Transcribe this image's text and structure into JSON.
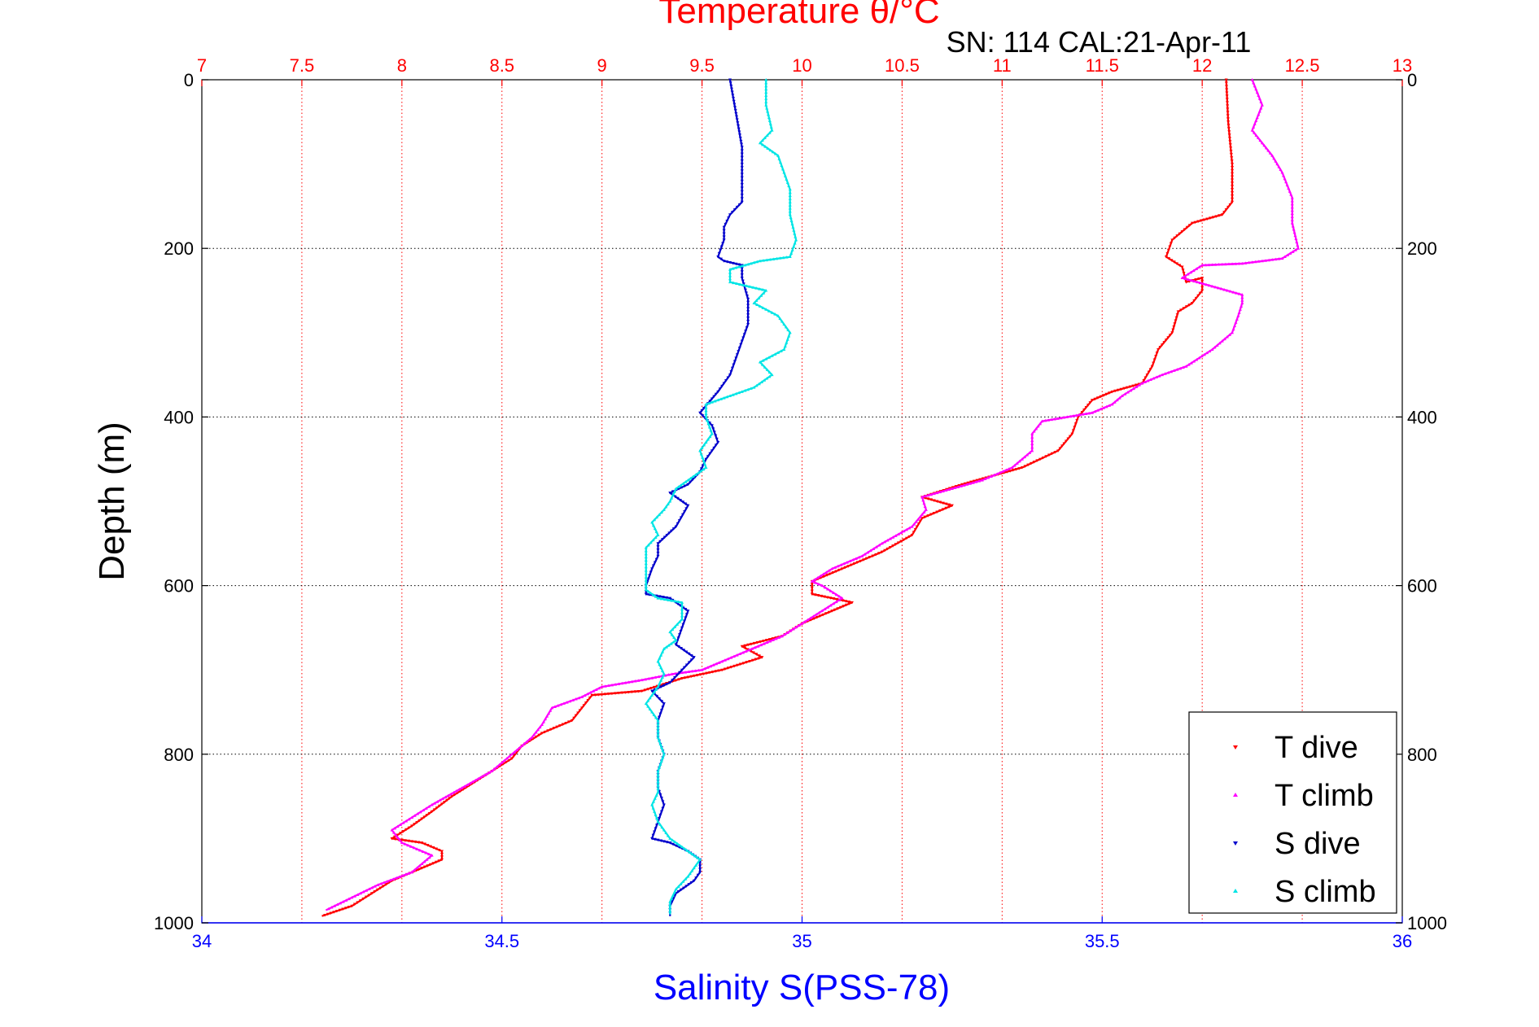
{
  "chart_data": {
    "type": "scatter",
    "title": "Temperature θ/°C",
    "subtitle": "SN: 114  CAL:21-Apr-11",
    "top_axis": {
      "label": "Temperature θ/°C",
      "range": [
        7,
        13
      ],
      "ticks": [
        "7",
        "7.5",
        "8",
        "8.5",
        "9",
        "9.5",
        "10",
        "10.5",
        "11",
        "11.5",
        "12",
        "12.5",
        "13"
      ],
      "color": "#ff0000"
    },
    "bottom_axis": {
      "label": "Salinity S(PSS-78)",
      "range": [
        34,
        36
      ],
      "ticks": [
        "34",
        "34.5",
        "35",
        "35.5",
        "36"
      ],
      "color": "#0000ff"
    },
    "y_axis": {
      "label": "Depth (m)",
      "range": [
        0,
        1000
      ],
      "reversed": true,
      "ticks": [
        "0",
        "200",
        "400",
        "600",
        "800",
        "1000"
      ]
    },
    "grid": true,
    "legend_position": "bottom-right",
    "series": [
      {
        "name": "T dive",
        "axis": "top",
        "color": "#ff0000",
        "points": [
          [
            12.12,
            0
          ],
          [
            12.13,
            50
          ],
          [
            12.15,
            100
          ],
          [
            12.15,
            145
          ],
          [
            12.1,
            160
          ],
          [
            11.95,
            170
          ],
          [
            11.85,
            190
          ],
          [
            11.82,
            210
          ],
          [
            11.9,
            222
          ],
          [
            11.92,
            240
          ],
          [
            12.0,
            235
          ],
          [
            12.0,
            250
          ],
          [
            11.95,
            265
          ],
          [
            11.88,
            275
          ],
          [
            11.85,
            300
          ],
          [
            11.78,
            320
          ],
          [
            11.75,
            340
          ],
          [
            11.7,
            360
          ],
          [
            11.55,
            370
          ],
          [
            11.45,
            380
          ],
          [
            11.38,
            400
          ],
          [
            11.35,
            420
          ],
          [
            11.28,
            440
          ],
          [
            11.1,
            460
          ],
          [
            10.95,
            470
          ],
          [
            10.8,
            480
          ],
          [
            10.6,
            495
          ],
          [
            10.75,
            505
          ],
          [
            10.6,
            520
          ],
          [
            10.55,
            540
          ],
          [
            10.4,
            560
          ],
          [
            10.2,
            580
          ],
          [
            10.05,
            595
          ],
          [
            10.05,
            610
          ],
          [
            10.25,
            620
          ],
          [
            10.15,
            630
          ],
          [
            10.0,
            645
          ],
          [
            9.9,
            660
          ],
          [
            9.7,
            672
          ],
          [
            9.8,
            685
          ],
          [
            9.6,
            700
          ],
          [
            9.4,
            710
          ],
          [
            9.2,
            725
          ],
          [
            8.95,
            730
          ],
          [
            8.9,
            745
          ],
          [
            8.85,
            760
          ],
          [
            8.7,
            775
          ],
          [
            8.6,
            790
          ],
          [
            8.55,
            805
          ],
          [
            8.45,
            820
          ],
          [
            8.35,
            835
          ],
          [
            8.25,
            850
          ],
          [
            8.15,
            868
          ],
          [
            8.05,
            885
          ],
          [
            7.95,
            900
          ],
          [
            8.1,
            905
          ],
          [
            8.2,
            915
          ],
          [
            8.2,
            925
          ],
          [
            8.1,
            935
          ],
          [
            7.95,
            950
          ],
          [
            7.85,
            965
          ],
          [
            7.75,
            980
          ],
          [
            7.6,
            992
          ]
        ]
      },
      {
        "name": "T climb",
        "axis": "top",
        "color": "#ff00ff",
        "points": [
          [
            12.25,
            0
          ],
          [
            12.3,
            30
          ],
          [
            12.25,
            60
          ],
          [
            12.35,
            90
          ],
          [
            12.4,
            110
          ],
          [
            12.45,
            140
          ],
          [
            12.45,
            170
          ],
          [
            12.48,
            200
          ],
          [
            12.4,
            212
          ],
          [
            12.2,
            218
          ],
          [
            12.0,
            220
          ],
          [
            11.9,
            235
          ],
          [
            12.05,
            245
          ],
          [
            12.2,
            255
          ],
          [
            12.2,
            265
          ],
          [
            12.18,
            280
          ],
          [
            12.15,
            300
          ],
          [
            12.05,
            320
          ],
          [
            11.92,
            340
          ],
          [
            11.8,
            350
          ],
          [
            11.7,
            360
          ],
          [
            11.6,
            375
          ],
          [
            11.55,
            385
          ],
          [
            11.45,
            395
          ],
          [
            11.2,
            405
          ],
          [
            11.15,
            420
          ],
          [
            11.15,
            440
          ],
          [
            11.05,
            460
          ],
          [
            10.9,
            475
          ],
          [
            10.75,
            485
          ],
          [
            10.6,
            495
          ],
          [
            10.62,
            510
          ],
          [
            10.55,
            530
          ],
          [
            10.4,
            550
          ],
          [
            10.3,
            565
          ],
          [
            10.15,
            580
          ],
          [
            10.05,
            595
          ],
          [
            10.1,
            600
          ],
          [
            10.2,
            615
          ],
          [
            10.1,
            630
          ],
          [
            10.0,
            645
          ],
          [
            9.9,
            660
          ],
          [
            9.75,
            675
          ],
          [
            9.6,
            690
          ],
          [
            9.5,
            700
          ],
          [
            9.35,
            705
          ],
          [
            9.2,
            712
          ],
          [
            9.0,
            720
          ],
          [
            8.9,
            732
          ],
          [
            8.75,
            745
          ],
          [
            8.7,
            765
          ],
          [
            8.65,
            780
          ],
          [
            8.55,
            800
          ],
          [
            8.45,
            820
          ],
          [
            8.3,
            840
          ],
          [
            8.15,
            860
          ],
          [
            8.05,
            875
          ],
          [
            7.95,
            890
          ],
          [
            8.0,
            905
          ],
          [
            8.15,
            920
          ],
          [
            8.05,
            940
          ],
          [
            7.88,
            955
          ],
          [
            7.75,
            970
          ],
          [
            7.62,
            985
          ]
        ]
      },
      {
        "name": "S dive",
        "axis": "bottom",
        "color": "#0000cc",
        "points": [
          [
            34.88,
            0
          ],
          [
            34.89,
            40
          ],
          [
            34.9,
            80
          ],
          [
            34.9,
            120
          ],
          [
            34.9,
            145
          ],
          [
            34.88,
            160
          ],
          [
            34.87,
            175
          ],
          [
            34.87,
            190
          ],
          [
            34.86,
            210
          ],
          [
            34.87,
            215
          ],
          [
            34.9,
            220
          ],
          [
            34.9,
            235
          ],
          [
            34.91,
            260
          ],
          [
            34.91,
            290
          ],
          [
            34.9,
            310
          ],
          [
            34.89,
            330
          ],
          [
            34.88,
            350
          ],
          [
            34.86,
            370
          ],
          [
            34.83,
            395
          ],
          [
            34.85,
            410
          ],
          [
            34.86,
            430
          ],
          [
            34.84,
            450
          ],
          [
            34.83,
            465
          ],
          [
            34.81,
            480
          ],
          [
            34.78,
            490
          ],
          [
            34.81,
            505
          ],
          [
            34.79,
            530
          ],
          [
            34.76,
            550
          ],
          [
            34.76,
            565
          ],
          [
            34.75,
            580
          ],
          [
            34.74,
            600
          ],
          [
            34.74,
            610
          ],
          [
            34.78,
            615
          ],
          [
            34.81,
            630
          ],
          [
            34.8,
            650
          ],
          [
            34.79,
            670
          ],
          [
            34.82,
            685
          ],
          [
            34.8,
            700
          ],
          [
            34.78,
            715
          ],
          [
            34.75,
            725
          ],
          [
            34.77,
            740
          ],
          [
            34.76,
            760
          ],
          [
            34.76,
            780
          ],
          [
            34.77,
            800
          ],
          [
            34.76,
            820
          ],
          [
            34.76,
            840
          ],
          [
            34.77,
            860
          ],
          [
            34.76,
            880
          ],
          [
            34.75,
            900
          ],
          [
            34.78,
            905
          ],
          [
            34.81,
            915
          ],
          [
            34.83,
            925
          ],
          [
            34.83,
            940
          ],
          [
            34.82,
            950
          ],
          [
            34.79,
            965
          ],
          [
            34.78,
            980
          ],
          [
            34.78,
            992
          ]
        ]
      },
      {
        "name": "S climb",
        "axis": "bottom",
        "color": "#00e5e5",
        "points": [
          [
            34.94,
            0
          ],
          [
            34.94,
            30
          ],
          [
            34.95,
            60
          ],
          [
            34.93,
            75
          ],
          [
            34.96,
            90
          ],
          [
            34.97,
            110
          ],
          [
            34.98,
            130
          ],
          [
            34.98,
            160
          ],
          [
            34.99,
            190
          ],
          [
            34.98,
            210
          ],
          [
            34.93,
            215
          ],
          [
            34.88,
            225
          ],
          [
            34.88,
            240
          ],
          [
            34.94,
            250
          ],
          [
            34.92,
            265
          ],
          [
            34.96,
            280
          ],
          [
            34.98,
            300
          ],
          [
            34.97,
            320
          ],
          [
            34.93,
            335
          ],
          [
            34.95,
            350
          ],
          [
            34.92,
            365
          ],
          [
            34.88,
            375
          ],
          [
            34.84,
            385
          ],
          [
            34.84,
            400
          ],
          [
            34.85,
            420
          ],
          [
            34.83,
            440
          ],
          [
            34.84,
            460
          ],
          [
            34.81,
            475
          ],
          [
            34.79,
            485
          ],
          [
            34.78,
            500
          ],
          [
            34.77,
            510
          ],
          [
            34.75,
            525
          ],
          [
            34.76,
            540
          ],
          [
            34.74,
            555
          ],
          [
            34.74,
            570
          ],
          [
            34.74,
            590
          ],
          [
            34.74,
            605
          ],
          [
            34.76,
            615
          ],
          [
            34.8,
            620
          ],
          [
            34.8,
            640
          ],
          [
            34.78,
            655
          ],
          [
            34.79,
            665
          ],
          [
            34.77,
            675
          ],
          [
            34.76,
            690
          ],
          [
            34.77,
            705
          ],
          [
            34.76,
            720
          ],
          [
            34.74,
            740
          ],
          [
            34.76,
            760
          ],
          [
            34.76,
            780
          ],
          [
            34.77,
            800
          ],
          [
            34.76,
            820
          ],
          [
            34.76,
            845
          ],
          [
            34.75,
            860
          ],
          [
            34.76,
            880
          ],
          [
            34.78,
            900
          ],
          [
            34.8,
            910
          ],
          [
            34.83,
            925
          ],
          [
            34.81,
            945
          ],
          [
            34.79,
            960
          ],
          [
            34.78,
            975
          ],
          [
            34.78,
            990
          ]
        ]
      }
    ]
  }
}
